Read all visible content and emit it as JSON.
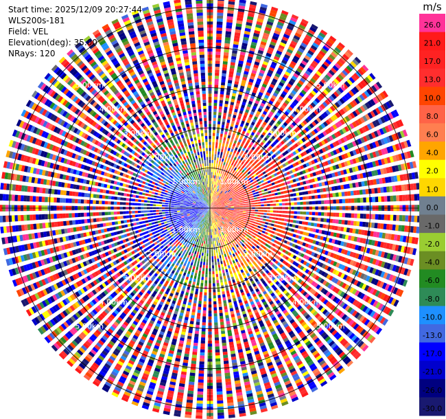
{
  "info": {
    "start_time": "Start time: 2025/12/09 20:27:44",
    "instrument": "WLS200s-181",
    "field": "Field: VEL",
    "elevation": "Elevation(deg): 35.00",
    "nrays": "NRays: 120"
  },
  "chart_data": {
    "type": "heatmap",
    "projection": "polar-ppi",
    "field": "VEL",
    "nrays": 120,
    "elevation_deg": 35.0,
    "range_rings": [
      {
        "label": "1.00km",
        "km": 1.0
      },
      {
        "label": "2.00km",
        "km": 2.0
      },
      {
        "label": "3.00km",
        "km": 3.0
      },
      {
        "label": "4.00km",
        "km": 4.0
      },
      {
        "label": "5.00km",
        "km": 5.0
      }
    ],
    "max_range_km": 5.2,
    "near_field": {
      "range_km": 2.0,
      "pattern": "radial velocity dipole: negative (toward) on west side, positive (away) on east side",
      "west_value": -15,
      "east_value": 15
    },
    "far_field": "noise (random values across full colour scale)",
    "colorbar": {
      "unit": "m/s",
      "ticks": [
        "26.0",
        "21.0",
        "17.0",
        "13.0",
        "10.0",
        "8.0",
        "6.0",
        "4.0",
        "2.0",
        "1.0",
        "0.0",
        "-1.0",
        "-2.0",
        "-4.0",
        "-6.0",
        "-8.0",
        "-10.0",
        "-13.0",
        "-17.0",
        "-21.0",
        "-26.0",
        "-30.0"
      ],
      "colors": [
        "#ff3399",
        "#ff1a1a",
        "#ff2222",
        "#ff2e2e",
        "#ff4500",
        "#ff6347",
        "#ff7f50",
        "#ffa500",
        "#ffff00",
        "#ffd700",
        "#708090",
        "#696969",
        "#9acd32",
        "#6b8e23",
        "#228b22",
        "#2e8b57",
        "#1e90ff",
        "#4169e1",
        "#0000ff",
        "#0000cd",
        "#000080",
        "#191970"
      ]
    }
  }
}
